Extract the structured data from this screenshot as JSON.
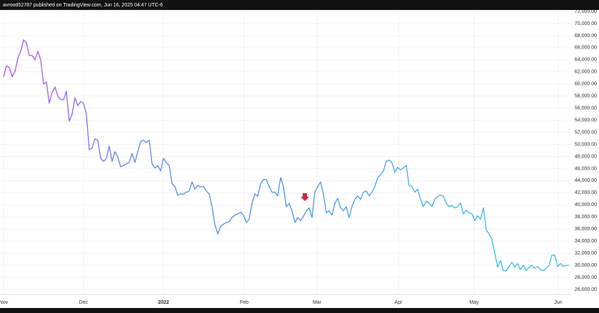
{
  "header": "avrood52787 published on TradingView.com, Jun 16, 2025 04:47 UTC-6",
  "chart_data": {
    "type": "line",
    "series": [
      {
        "gradient": [
          "#b94cf2",
          "#5b88ee",
          "#4a93ec",
          "#3fb0ea",
          "#36c2ea"
        ],
        "values": [
          61200,
          63000,
          62700,
          61200,
          62100,
          64200,
          65400,
          67300,
          66800,
          64700,
          64700,
          64000,
          65400,
          64000,
          60000,
          60300,
          56800,
          58600,
          59500,
          58000,
          57400,
          57400,
          58800,
          53800,
          55000,
          57700,
          56400,
          57100,
          56800,
          55000,
          49100,
          49400,
          50900,
          50700,
          47700,
          47200,
          47700,
          49700,
          47200,
          48800,
          47900,
          46300,
          46500,
          46800,
          47000,
          48500,
          47000,
          48800,
          50500,
          50700,
          50300,
          50700,
          46800,
          46100,
          46500,
          45600,
          47700,
          47000,
          46500,
          43500,
          43000,
          41600,
          41800,
          41800,
          42100,
          42300,
          43800,
          42600,
          43200,
          43000,
          43000,
          42300,
          41800,
          39700,
          36700,
          35200,
          36400,
          36800,
          37100,
          37200,
          37900,
          38300,
          38500,
          38800,
          38300,
          37100,
          37600,
          40300,
          41800,
          41400,
          43500,
          44200,
          44200,
          43000,
          42100,
          42100,
          41500,
          44500,
          43000,
          39700,
          40200,
          39000,
          37100,
          37900,
          37400,
          38100,
          39000,
          39500,
          37900,
          42100,
          43000,
          43800,
          41800,
          38700,
          39000,
          38300,
          40200,
          41100,
          39500,
          39000,
          39700,
          37900,
          39700,
          40900,
          41500,
          40900,
          42100,
          42300,
          41500,
          42100,
          43000,
          44500,
          45000,
          45600,
          47200,
          47400,
          47000,
          45400,
          46200,
          45800,
          46100,
          46500,
          43200,
          43000,
          42100,
          42600,
          40900,
          39700,
          40600,
          40300,
          39700,
          40900,
          41400,
          41600,
          41400,
          40300,
          39700,
          39900,
          39500,
          39700,
          40300,
          38500,
          39100,
          38700,
          38500,
          37400,
          38200,
          37600,
          39500,
          35900,
          35200,
          34300,
          32000,
          29700,
          30800,
          29100,
          29100,
          29800,
          30500,
          29700,
          30300,
          29300,
          30000,
          29100,
          29700,
          30000,
          29500,
          29800,
          29300,
          29100,
          29500,
          30000,
          31700,
          31700,
          29800,
          30300,
          29800,
          30000,
          30000
        ]
      }
    ],
    "xlim": [
      -1.25,
      198.75
    ],
    "xticks": [
      {
        "value": 0,
        "label": "Nov"
      },
      {
        "value": 28,
        "label": "Dec"
      },
      {
        "value": 56,
        "label": "2022"
      },
      {
        "value": 84.25,
        "label": "Feb"
      },
      {
        "value": 109.75,
        "label": "Mar"
      },
      {
        "value": 138.25,
        "label": "Apr"
      },
      {
        "value": 164.75,
        "label": "May"
      },
      {
        "value": 194.25,
        "label": "Jun"
      }
    ],
    "ylim": [
      26000,
      72000
    ],
    "yticks": [
      {
        "value": 26000,
        "label": "26,000.00"
      },
      {
        "value": 28000,
        "label": "28,000.00"
      },
      {
        "value": 30000,
        "label": "30,000.00"
      },
      {
        "value": 32000,
        "label": "32,000.00"
      },
      {
        "value": 34000,
        "label": "34,000.00"
      },
      {
        "value": 36000,
        "label": "36,000.00"
      },
      {
        "value": 38000,
        "label": "38,000.00"
      },
      {
        "value": 40000,
        "label": "40,000.00"
      },
      {
        "value": 42000,
        "label": "42,000.00"
      },
      {
        "value": 44000,
        "label": "44,000.00"
      },
      {
        "value": 46000,
        "label": "46,000.00"
      },
      {
        "value": 48000,
        "label": "48,000.00"
      },
      {
        "value": 50000,
        "label": "50,000.00"
      },
      {
        "value": 52000,
        "label": "52,000.00"
      },
      {
        "value": 54000,
        "label": "54,000.00"
      },
      {
        "value": 56000,
        "label": "56,000.00"
      },
      {
        "value": 58000,
        "label": "58,000.00"
      },
      {
        "value": 60000,
        "label": "60,000.00"
      },
      {
        "value": 62000,
        "label": "62,000.00"
      },
      {
        "value": 64000,
        "label": "64,000.00"
      },
      {
        "value": 66000,
        "label": "66,000.00"
      },
      {
        "value": 68000,
        "label": "68,000.00"
      },
      {
        "value": 70000,
        "label": "70,000.00"
      },
      {
        "value": 72000,
        "label": "72,000.00"
      }
    ],
    "grid": true
  }
}
